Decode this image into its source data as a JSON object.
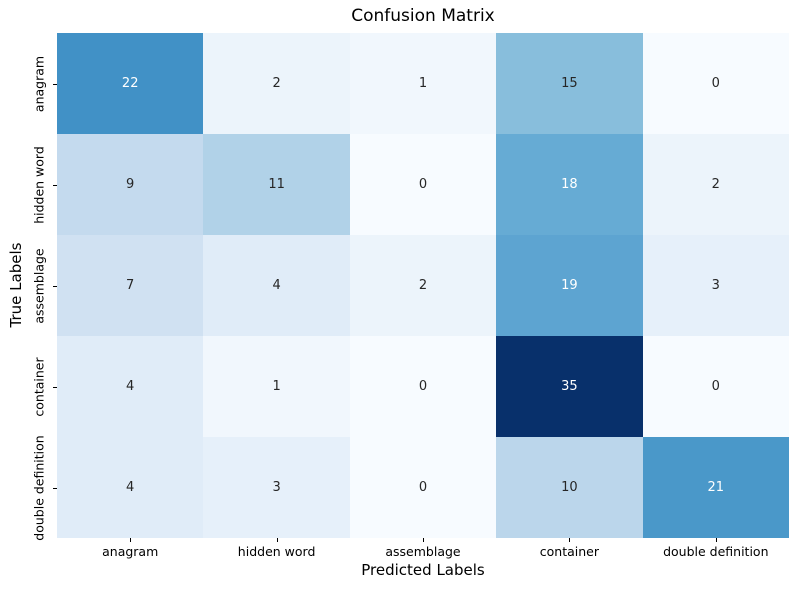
{
  "chart_data": {
    "type": "heatmap",
    "title": "Confusion Matrix",
    "xlabel": "Predicted Labels",
    "ylabel": "True Labels",
    "x_categories": [
      "anagram",
      "hidden word",
      "assemblage",
      "container",
      "double definition"
    ],
    "y_categories": [
      "anagram",
      "hidden word",
      "assemblage",
      "container",
      "double definition"
    ],
    "matrix": [
      [
        22,
        2,
        1,
        15,
        0
      ],
      [
        9,
        11,
        0,
        18,
        2
      ],
      [
        7,
        4,
        2,
        19,
        3
      ],
      [
        4,
        1,
        0,
        35,
        0
      ],
      [
        4,
        3,
        0,
        10,
        21
      ]
    ],
    "vmin": 0,
    "vmax": 35,
    "colormap": {
      "name": "Blues",
      "stops": [
        {
          "pos": 0.0,
          "color": "#f7fbff"
        },
        {
          "pos": 0.125,
          "color": "#deebf7"
        },
        {
          "pos": 0.25,
          "color": "#c6dbef"
        },
        {
          "pos": 0.375,
          "color": "#9ecae1"
        },
        {
          "pos": 0.5,
          "color": "#6baed6"
        },
        {
          "pos": 0.625,
          "color": "#4292c6"
        },
        {
          "pos": 0.75,
          "color": "#2171b5"
        },
        {
          "pos": 0.875,
          "color": "#08519c"
        },
        {
          "pos": 1.0,
          "color": "#08306b"
        }
      ]
    },
    "annotation_colors": {
      "dark": "#262626",
      "light": "#ffffff"
    },
    "grid": false,
    "legend": "none",
    "colorbar": "none"
  }
}
